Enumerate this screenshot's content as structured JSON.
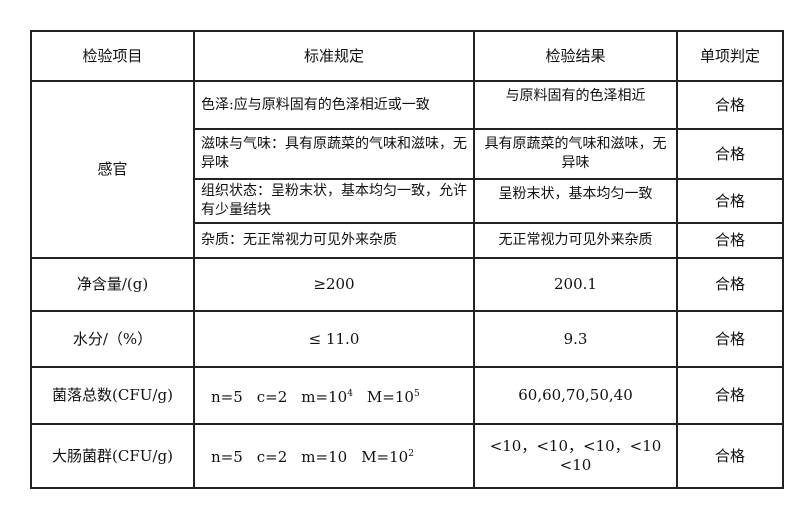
{
  "headers": [
    "检验项目",
    "标准规定",
    "检验结果",
    "单项判定"
  ],
  "sensory": {
    "label": "感官",
    "rows": [
      {
        "standard": "色泽:应与原料固有的色泽相近或一致",
        "result": "与原料固有的色泽相近",
        "verdict": "合格"
      },
      {
        "standard": "滋味与气味：具有原蔬菜的气味和滋味，无异味",
        "result": "具有原蔬菜的气味和滋味，无异味",
        "verdict": "合格"
      },
      {
        "standard": "组织状态：呈粉末状，基本均匀一致，允许有少量结块",
        "result": "呈粉末状，基本均匀一致",
        "verdict": "合格"
      },
      {
        "standard": "杂质：无正常视力可见外来杂质",
        "result": "无正常视力可见外来杂质",
        "verdict": "合格"
      }
    ]
  },
  "net": {
    "label": "净含量/(g)",
    "standard": "≥200",
    "result": "200.1",
    "verdict": "合格"
  },
  "water": {
    "label": "水分/（%）",
    "standard": "≤ 11.0",
    "result": "9.3",
    "verdict": "合格"
  },
  "colony": {
    "label": "菌落总数(CFU/g)",
    "n": "n=5",
    "c": "c=2",
    "m": "m=10",
    "m_exp": "4",
    "M": "M=10",
    "M_exp": "5",
    "result": "60,60,70,50,40",
    "verdict": "合格"
  },
  "coliform": {
    "label": "大肠菌群(CFU/g)",
    "n": "n=5",
    "c": "c=2",
    "m": "m=10",
    "M": "M=10",
    "M_exp": "2",
    "result_line1": "<10，<10，<10，<10",
    "result_line2": "<10",
    "verdict": "合格"
  }
}
